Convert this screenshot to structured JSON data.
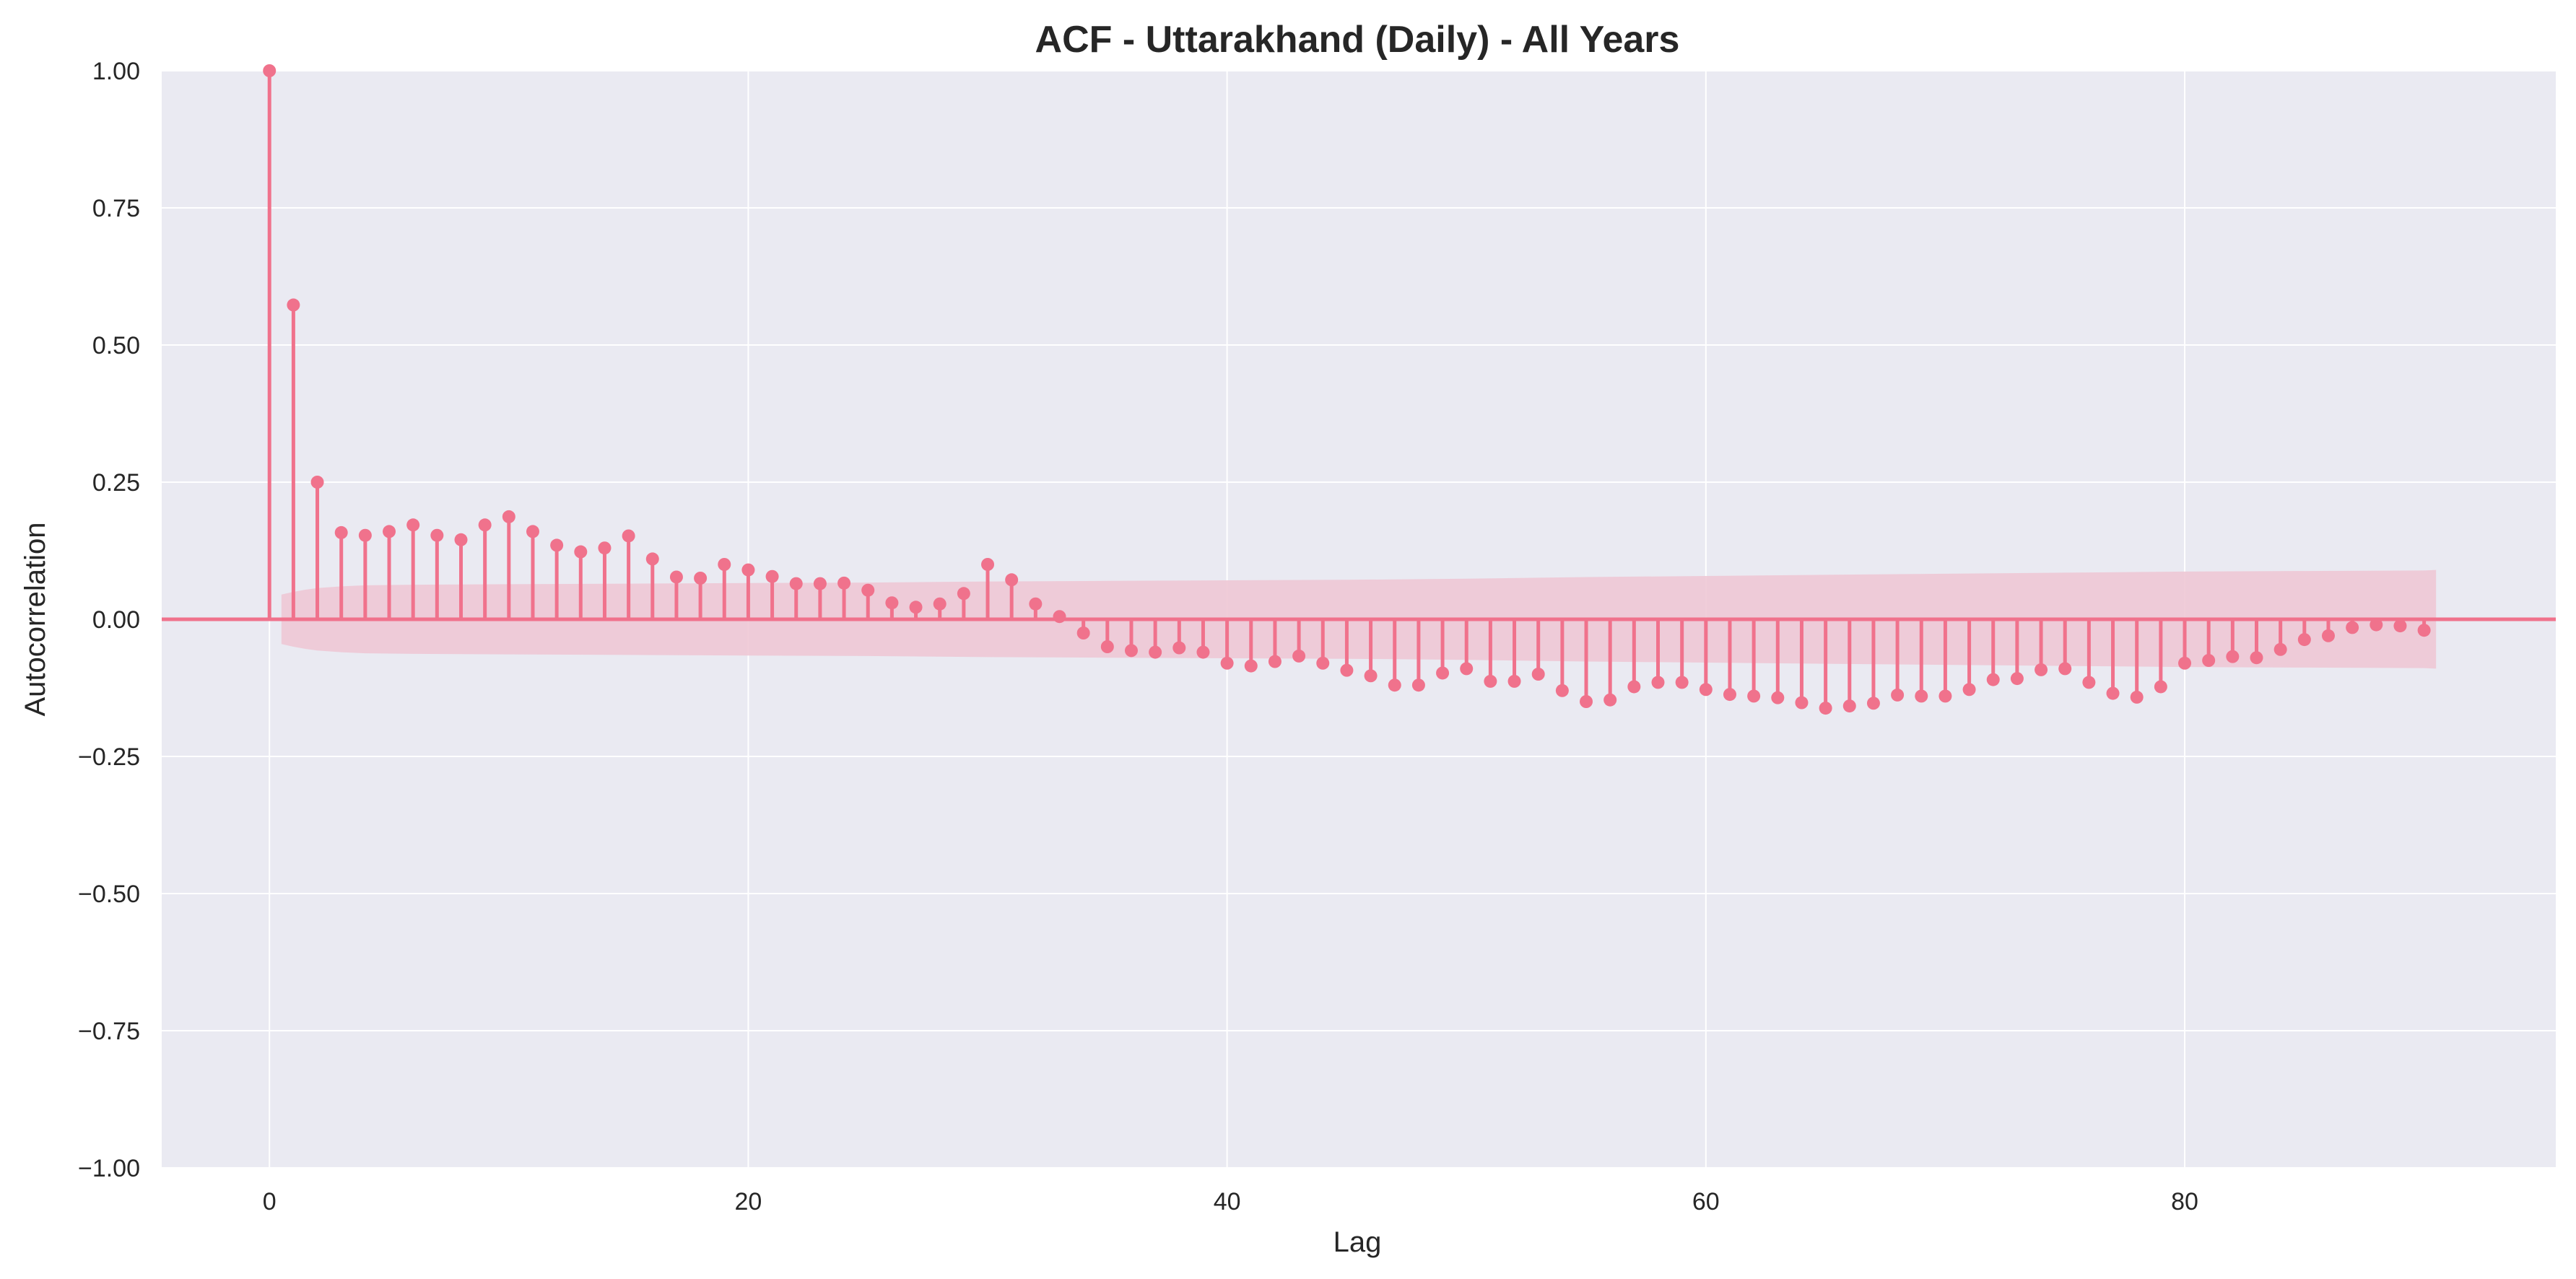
{
  "chart_data": {
    "type": "stem",
    "title": "ACF - Uttarakhand (Daily) - All Years",
    "xlabel": "Lag",
    "ylabel": "Autocorrelation",
    "xlim": [
      -4.5,
      95.5
    ],
    "ylim": [
      -1.0,
      1.0
    ],
    "xticks": [
      0,
      20,
      40,
      60,
      80
    ],
    "xtick_labels": [
      "0",
      "20",
      "40",
      "60",
      "80"
    ],
    "yticks": [
      1.0,
      0.75,
      0.5,
      0.25,
      0.0,
      -0.25,
      -0.5,
      -0.75,
      -1.0
    ],
    "ytick_labels": [
      "1.00",
      "0.75",
      "0.50",
      "0.25",
      "0.00",
      "−0.25",
      "−0.50",
      "−0.75",
      "−1.00"
    ],
    "grid": true,
    "colors": {
      "stem": "#f0728c",
      "confidence_band": "#eec8d5",
      "plot_background": "#eaeaf2",
      "grid": "#ffffff"
    },
    "lags": [
      0,
      1,
      2,
      3,
      4,
      5,
      6,
      7,
      8,
      9,
      10,
      11,
      12,
      13,
      14,
      15,
      16,
      17,
      18,
      19,
      20,
      21,
      22,
      23,
      24,
      25,
      26,
      27,
      28,
      29,
      30,
      31,
      32,
      33,
      34,
      35,
      36,
      37,
      38,
      39,
      40,
      41,
      42,
      43,
      44,
      45,
      46,
      47,
      48,
      49,
      50,
      51,
      52,
      53,
      54,
      55,
      56,
      57,
      58,
      59,
      60,
      61,
      62,
      63,
      64,
      65,
      66,
      67,
      68,
      69,
      70,
      71,
      72,
      73,
      74,
      75,
      76,
      77,
      78,
      79,
      80,
      81,
      82,
      83,
      84,
      85,
      86,
      87,
      88,
      89,
      90
    ],
    "values": [
      1.0,
      0.573,
      0.25,
      0.158,
      0.153,
      0.16,
      0.172,
      0.153,
      0.145,
      0.172,
      0.187,
      0.16,
      0.135,
      0.123,
      0.13,
      0.152,
      0.11,
      0.077,
      0.075,
      0.1,
      0.09,
      0.078,
      0.065,
      0.065,
      0.066,
      0.053,
      0.03,
      0.022,
      0.028,
      0.047,
      0.1,
      0.072,
      0.028,
      0.005,
      -0.025,
      -0.05,
      -0.057,
      -0.06,
      -0.052,
      -0.06,
      -0.08,
      -0.085,
      -0.077,
      -0.067,
      -0.08,
      -0.093,
      -0.103,
      -0.12,
      -0.12,
      -0.098,
      -0.09,
      -0.113,
      -0.113,
      -0.1,
      -0.13,
      -0.15,
      -0.147,
      -0.123,
      -0.115,
      -0.115,
      -0.128,
      -0.137,
      -0.14,
      -0.143,
      -0.152,
      -0.162,
      -0.158,
      -0.153,
      -0.138,
      -0.14,
      -0.14,
      -0.128,
      -0.11,
      -0.108,
      -0.092,
      -0.09,
      -0.115,
      -0.135,
      -0.142,
      -0.123,
      -0.08,
      -0.075,
      -0.068,
      -0.07,
      -0.055,
      -0.037,
      -0.03,
      -0.015,
      -0.01,
      -0.012,
      -0.02
    ],
    "confidence_band": {
      "lags": [
        0.5,
        1,
        1.5,
        2,
        3,
        4,
        6,
        10,
        15,
        20,
        25,
        30,
        35,
        40,
        45,
        50,
        55,
        60,
        65,
        70,
        75,
        80,
        85,
        90,
        90.5
      ],
      "upper": [
        0.045,
        0.05,
        0.054,
        0.057,
        0.06,
        0.062,
        0.063,
        0.064,
        0.065,
        0.066,
        0.067,
        0.069,
        0.07,
        0.071,
        0.072,
        0.074,
        0.077,
        0.079,
        0.081,
        0.083,
        0.085,
        0.087,
        0.088,
        0.089,
        0.09
      ]
    }
  }
}
